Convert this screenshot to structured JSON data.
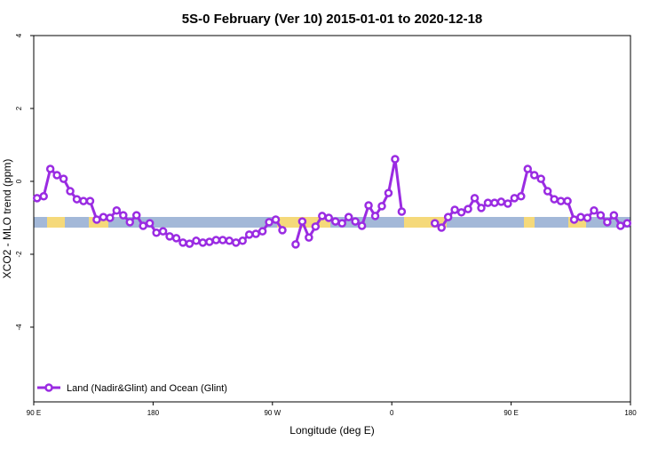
{
  "chart_data": {
    "type": "line",
    "title": "5S-0 February (Ver 10)   2015-01-01 to 2020-12-18",
    "x_label": "Longitude (deg E)",
    "y_label": "XCO2 - MLO trend (ppm)",
    "x": [
      92.5,
      97.5,
      102.5,
      107.5,
      112.5,
      117.5,
      122.5,
      127.5,
      132.5,
      137.5,
      142.5,
      147.5,
      152.5,
      157.5,
      162.5,
      167.5,
      172.5,
      177.5,
      182.5,
      187.5,
      192.5,
      197.5,
      202.5,
      207.5,
      212.5,
      217.5,
      222.5,
      227.5,
      232.5,
      237.5,
      242.5,
      247.5,
      252.5,
      257.5,
      262.5,
      267.5,
      272.5,
      277.5,
      282.5,
      287.5,
      292.5,
      297.5,
      302.5,
      307.5,
      312.5,
      317.5,
      322.5,
      327.5,
      332.5,
      337.5,
      342.5,
      347.5,
      352.5,
      357.5,
      362.5,
      367.5,
      372.5,
      377.5,
      382.5,
      387.5,
      392.5,
      397.5,
      402.5,
      407.5,
      412.5,
      417.5,
      422.5,
      427.5,
      432.5,
      437.5,
      442.5,
      447.5,
      452.5,
      457.5,
      462.5,
      467.5,
      472.5,
      477.5,
      482.5,
      487.5,
      492.5,
      497.5,
      502.5,
      507.5,
      512.5,
      517.5,
      522.5,
      527.5,
      532.5,
      537.5
    ],
    "series": [
      {
        "name": "Land (Nadir&Glint) and Ocean (Glint)",
        "color": "#9a2be2",
        "values": [
          -0.46,
          -0.41,
          0.34,
          0.17,
          0.07,
          -0.27,
          -0.49,
          -0.54,
          -0.54,
          -1.05,
          -0.98,
          -1.0,
          -0.8,
          -0.93,
          -1.12,
          -0.93,
          -1.22,
          -1.15,
          -1.41,
          -1.37,
          -1.51,
          -1.56,
          -1.68,
          -1.71,
          -1.63,
          -1.68,
          -1.66,
          -1.61,
          -1.61,
          -1.63,
          -1.68,
          -1.63,
          -1.46,
          -1.44,
          -1.37,
          -1.12,
          -1.05,
          -1.34,
          null,
          -1.73,
          -1.1,
          -1.54,
          -1.24,
          -0.95,
          -1.0,
          -1.1,
          -1.15,
          -0.98,
          -1.1,
          -1.22,
          -0.66,
          -0.95,
          -0.68,
          -0.32,
          0.61,
          -0.83,
          null,
          null,
          null,
          null,
          -1.15,
          -1.27,
          -0.98,
          -0.78,
          -0.85,
          -0.76,
          -0.46,
          -0.73,
          -0.59,
          -0.59,
          -0.56,
          -0.61,
          -0.46,
          -0.41,
          0.34,
          0.17,
          0.07,
          -0.27,
          -0.49,
          -0.54,
          -0.54,
          -1.05,
          -0.98,
          -1.0,
          -0.8,
          -0.93,
          -1.12,
          -0.93,
          -1.22,
          -1.15
        ]
      }
    ],
    "xlim": [
      90,
      540
    ],
    "xticks": [
      {
        "value": 90,
        "label": "90 E"
      },
      180,
      {
        "value": 270,
        "label": "90 W"
      },
      {
        "value": 360,
        "label": "0"
      },
      {
        "value": 450,
        "label": "90 E"
      },
      {
        "value": 540,
        "label": "180"
      }
    ],
    "ylim": [
      -6.05,
      4
    ],
    "yticks": [
      -4,
      -2,
      0,
      2,
      4
    ],
    "legend": "bottom-left"
  }
}
